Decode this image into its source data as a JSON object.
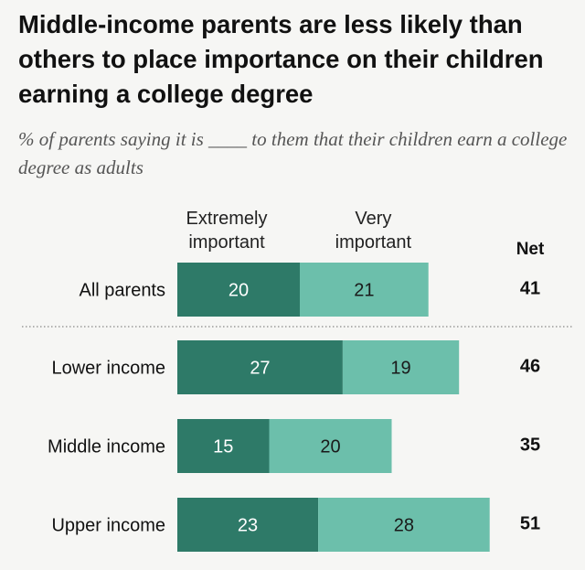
{
  "title": "Middle-income parents are less likely than others to place importance on their children earning a college degree",
  "subtitle": "% of parents saying it is ____ to them that their children earn a college degree as adults",
  "colors": {
    "extremely": "#2e7a68",
    "very": "#6cbfab",
    "divider": "#9a9a9a"
  },
  "chart_data": {
    "type": "bar",
    "orientation": "horizontal",
    "stacked": true,
    "categories": [
      "All parents",
      "Lower income",
      "Middle income",
      "Upper income"
    ],
    "series": [
      {
        "name": "Extremely important",
        "values": [
          20,
          27,
          15,
          23
        ]
      },
      {
        "name": "Very important",
        "values": [
          21,
          19,
          20,
          28
        ]
      }
    ],
    "net_label": "Net",
    "net": [
      41,
      46,
      35,
      51
    ],
    "divider_after_index": 0
  }
}
